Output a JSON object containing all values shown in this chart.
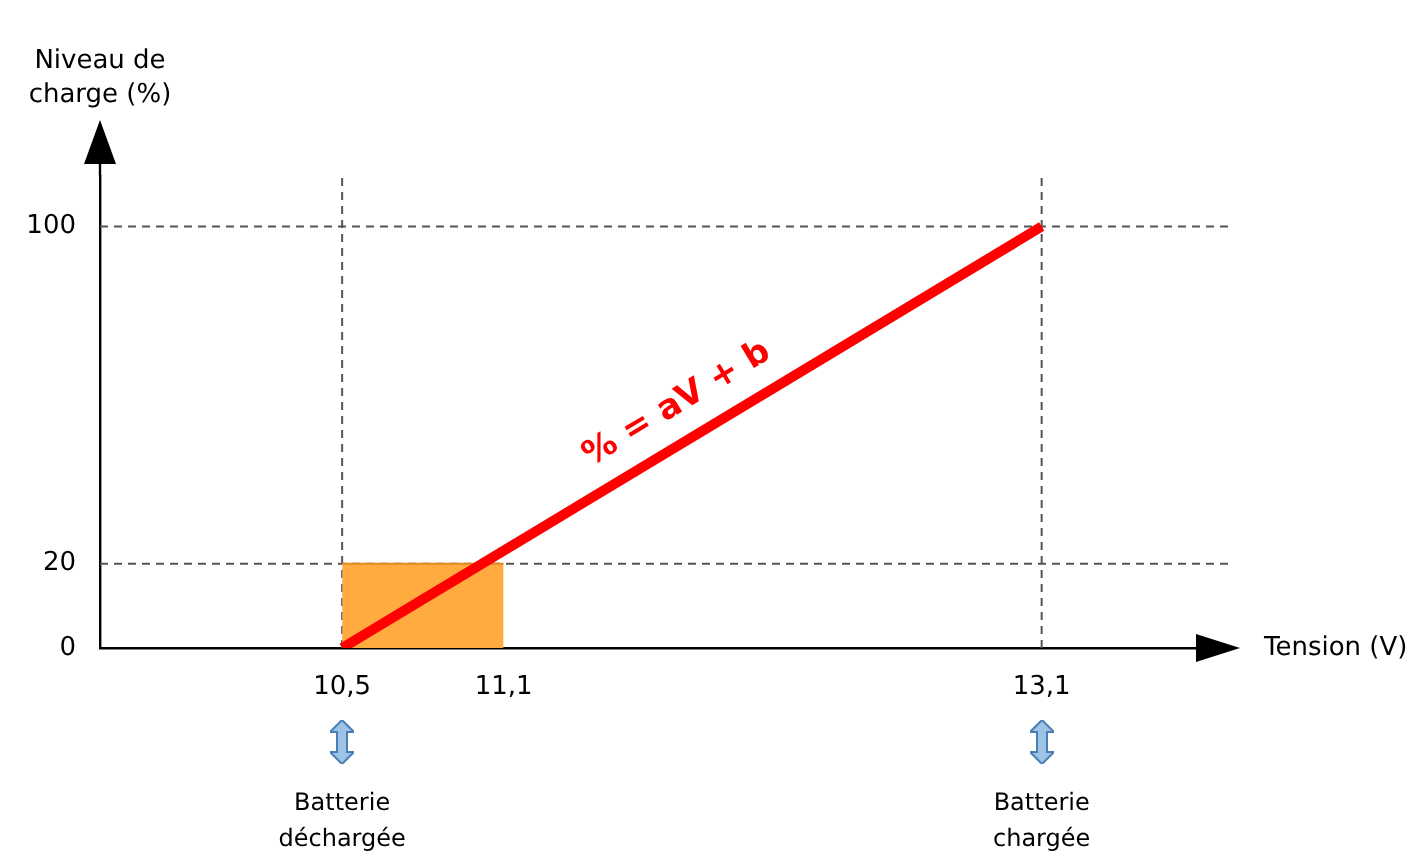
{
  "chart_data": {
    "type": "line",
    "xlabel": "Tension (V)",
    "ylabel": "Niveau de\ncharge (%)",
    "xlim": [
      9.6,
      13.8
    ],
    "ylim": [
      0,
      112
    ],
    "xticks": [
      {
        "value": 10.5,
        "label": "10,5"
      },
      {
        "value": 11.1,
        "label": "11,1"
      },
      {
        "value": 13.1,
        "label": "13,1"
      }
    ],
    "yticks": [
      0,
      20,
      100
    ],
    "series": [
      {
        "type": "area",
        "color": "#ffab40",
        "x": [
          10.5,
          11.1
        ],
        "values": [
          20,
          20
        ]
      },
      {
        "type": "line",
        "color": "#ff0000",
        "x": [
          10.5,
          13.1
        ],
        "values": [
          0,
          100
        ]
      }
    ],
    "ref_lines": [
      {
        "axis": "x",
        "value": 10.5,
        "color": "#555555",
        "line_style": "dashed"
      },
      {
        "axis": "x",
        "value": 13.1,
        "color": "#555555",
        "line_style": "dashed"
      },
      {
        "axis": "y",
        "value": 100,
        "color": "#555555",
        "line_style": "dashed"
      },
      {
        "axis": "y",
        "value": 20,
        "color": "#555555",
        "line_style": "dashed"
      }
    ],
    "annotations": [
      {
        "text": "% = aV + b",
        "x": 11.8,
        "y": 52
      },
      "Batterie\ndéchargée",
      "Batterie\nchargée"
    ],
    "grid": false,
    "legend": false,
    "marker": "none"
  }
}
